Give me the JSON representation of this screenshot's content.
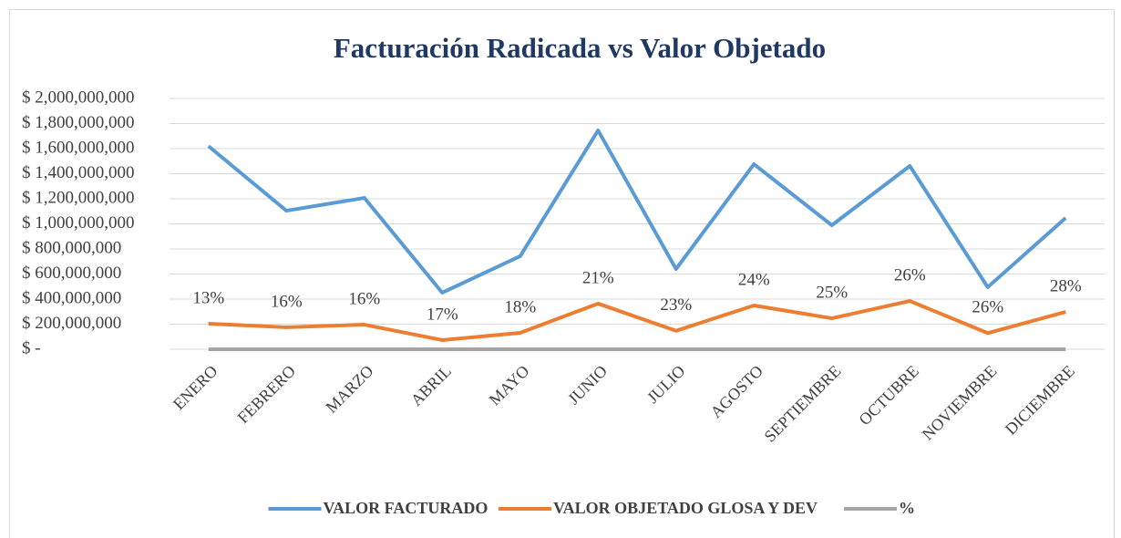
{
  "chart_data": {
    "type": "line",
    "title": "Facturación Radicada vs Valor Objetado",
    "categories": [
      "ENERO",
      "FEBRERO",
      "MARZO",
      "ABRIL",
      "MAYO",
      "JUNIO",
      "JULIO",
      "AGOSTO",
      "SEPTIEMBRE",
      "OCTUBRE",
      "NOVIEMBRE",
      "DICIEMBRE"
    ],
    "series": [
      {
        "name": "VALOR FACTURADO",
        "color": "#5b9bd5",
        "values": [
          1620000000,
          1105000000,
          1207000000,
          451000000,
          742000000,
          1745000000,
          640000000,
          1476000000,
          989000000,
          1462000000,
          495000000,
          1047000000
        ]
      },
      {
        "name": "VALOR OBJETADO GLOSA Y DEV",
        "color": "#ed7d31",
        "values": [
          204000000,
          175000000,
          196000000,
          73000000,
          131000000,
          364000000,
          147000000,
          349000000,
          247000000,
          385000000,
          129000000,
          298000000
        ]
      },
      {
        "name": "%",
        "color": "#a5a5a5",
        "values": [
          0.13,
          0.16,
          0.16,
          0.17,
          0.18,
          0.21,
          0.23,
          0.24,
          0.25,
          0.26,
          0.26,
          0.28
        ],
        "value_labels": [
          "13%",
          "16%",
          "16%",
          "17%",
          "18%",
          "21%",
          "23%",
          "24%",
          "25%",
          "26%",
          "26%",
          "28%"
        ]
      }
    ],
    "ylim": [
      0,
      2000000000
    ],
    "yticks": [
      {
        "value": 0,
        "label": "$ -"
      },
      {
        "value": 200000000,
        "label": "$ 200,000,000"
      },
      {
        "value": 400000000,
        "label": "$ 400,000,000"
      },
      {
        "value": 600000000,
        "label": "$ 600,000,000"
      },
      {
        "value": 800000000,
        "label": "$ 800,000,000"
      },
      {
        "value": 1000000000,
        "label": "$ 1,000,000,000"
      },
      {
        "value": 1200000000,
        "label": "$ 1,200,000,000"
      },
      {
        "value": 1400000000,
        "label": "$ 1,400,000,000"
      },
      {
        "value": 1600000000,
        "label": "$ 1,600,000,000"
      },
      {
        "value": 1800000000,
        "label": "$ 1,800,000,000"
      },
      {
        "value": 2000000000,
        "label": "$ 2,000,000,000"
      }
    ],
    "grid": true,
    "legend": "bottom"
  }
}
